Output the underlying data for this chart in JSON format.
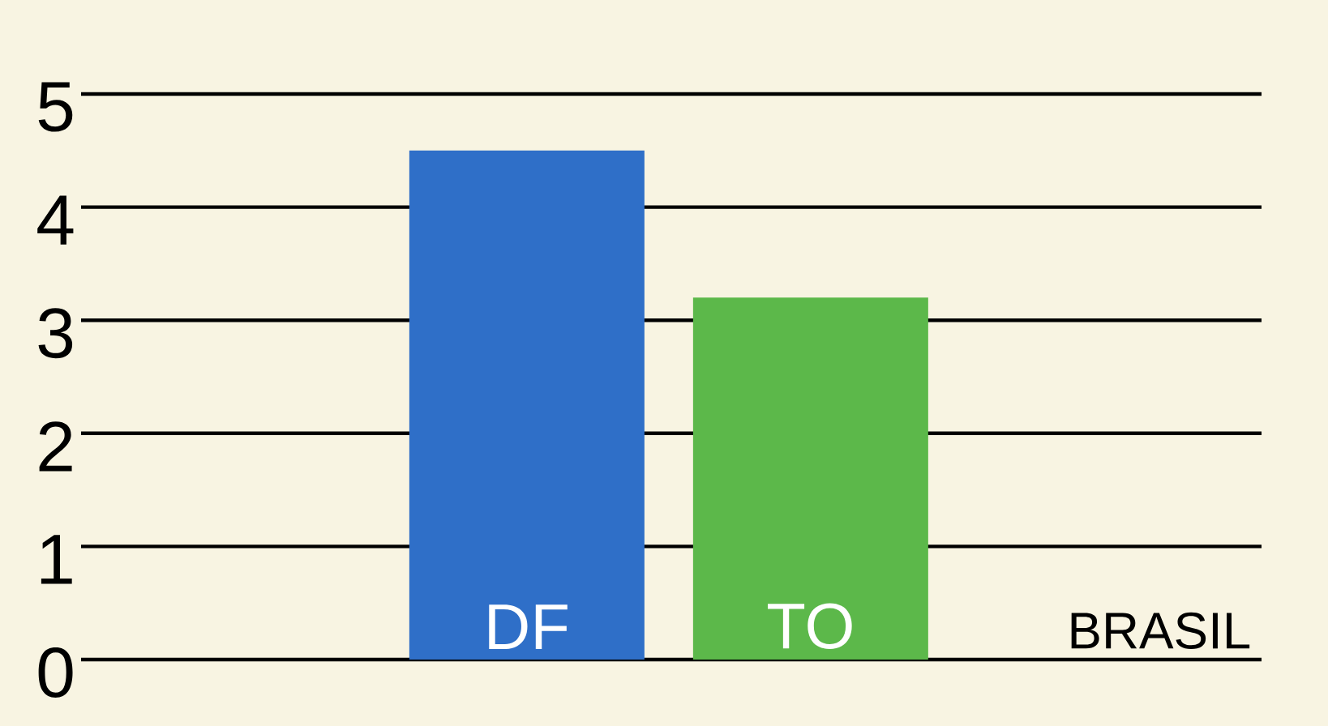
{
  "chart_data": {
    "type": "bar",
    "categories": [
      "DF",
      "TO",
      "BRASIL"
    ],
    "values": [
      4.5,
      3.2,
      null
    ],
    "colors": [
      "#2f6fc8",
      "#5cb84a",
      null
    ],
    "ylim": [
      0,
      5
    ],
    "yticks": [
      0,
      1,
      2,
      3,
      4,
      5
    ],
    "grid": "y"
  }
}
